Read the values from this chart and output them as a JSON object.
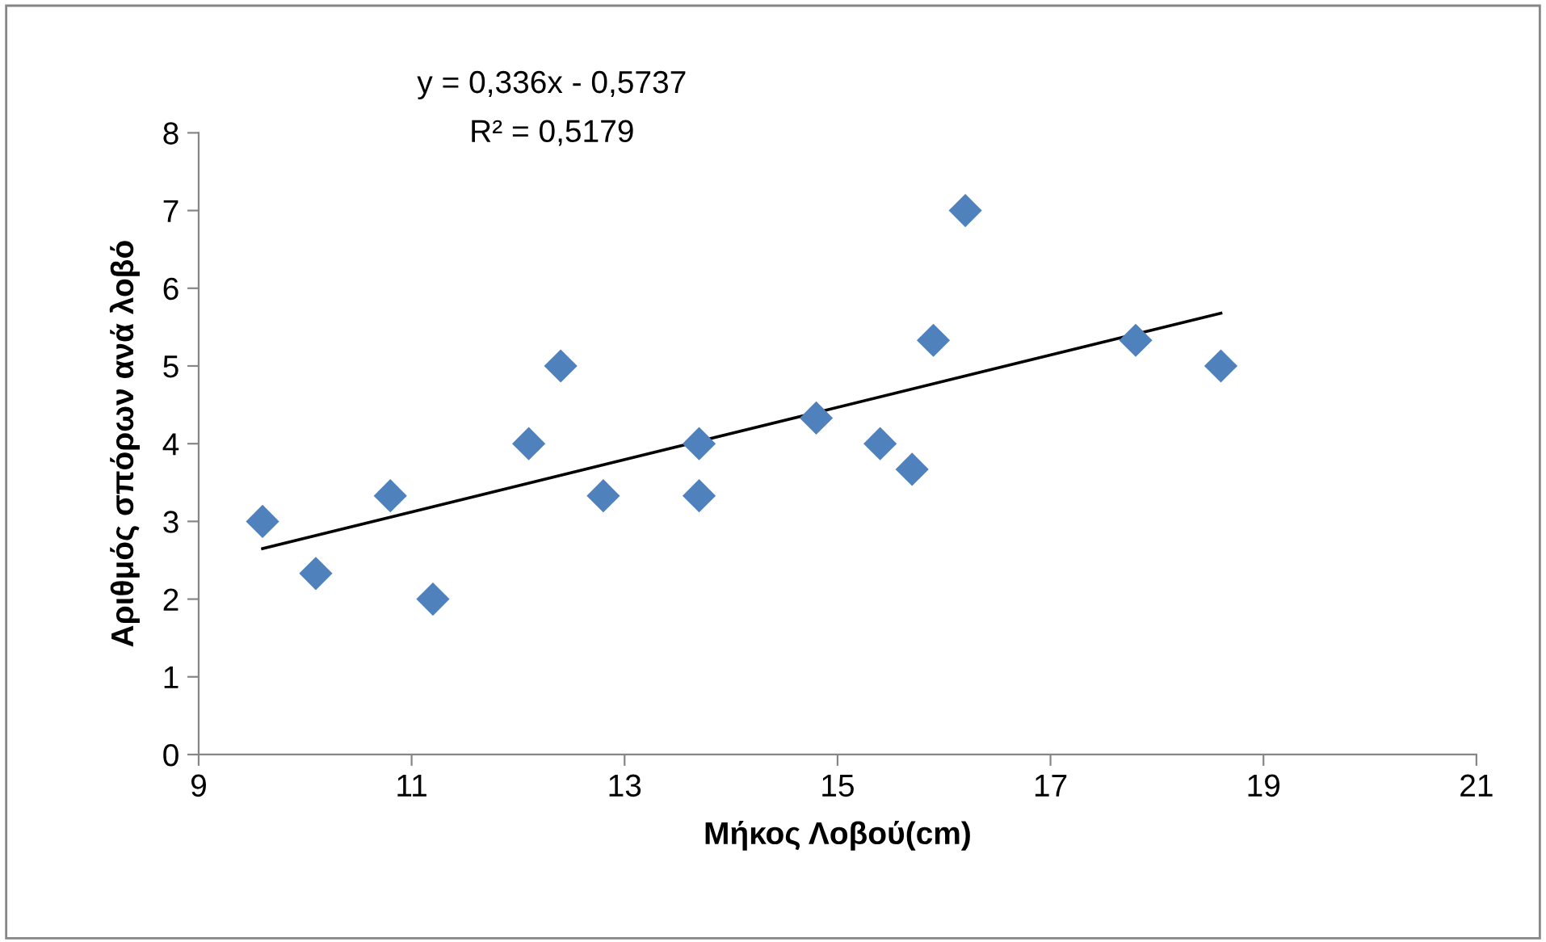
{
  "chart_data": {
    "type": "scatter",
    "xlabel": "Μήκος Λοβού(cm)",
    "ylabel": "Αριθμός σπόρων ανά λοβό",
    "annotations": [
      "y = 0,336x - 0,5737",
      "R² = 0,5179"
    ],
    "xlim": [
      9,
      21
    ],
    "xticks": [
      9,
      11,
      13,
      15,
      17,
      19,
      21
    ],
    "ylim": [
      0,
      8
    ],
    "yticks": [
      0,
      1,
      2,
      3,
      4,
      5,
      6,
      7,
      8
    ],
    "grid": false,
    "legend": false,
    "marker": "diamond",
    "series": [
      {
        "color": "#4f81bd",
        "x": [
          9.6,
          10.1,
          10.8,
          11.2,
          12.1,
          12.4,
          12.8,
          13.7,
          13.7,
          14.8,
          15.4,
          15.7,
          15.9,
          16.2,
          17.8,
          18.6
        ],
        "values": [
          3,
          2.33,
          3.33,
          2,
          4,
          5,
          3.33,
          4,
          3.33,
          4.33,
          4,
          3.67,
          5.33,
          7,
          5.33,
          5
        ]
      },
      {
        "type": "line",
        "color": "#000000",
        "marker": "none",
        "line_style": "solid",
        "x": [
          9.6,
          18.6
        ],
        "values": [
          2.65,
          5.68
        ]
      }
    ]
  }
}
